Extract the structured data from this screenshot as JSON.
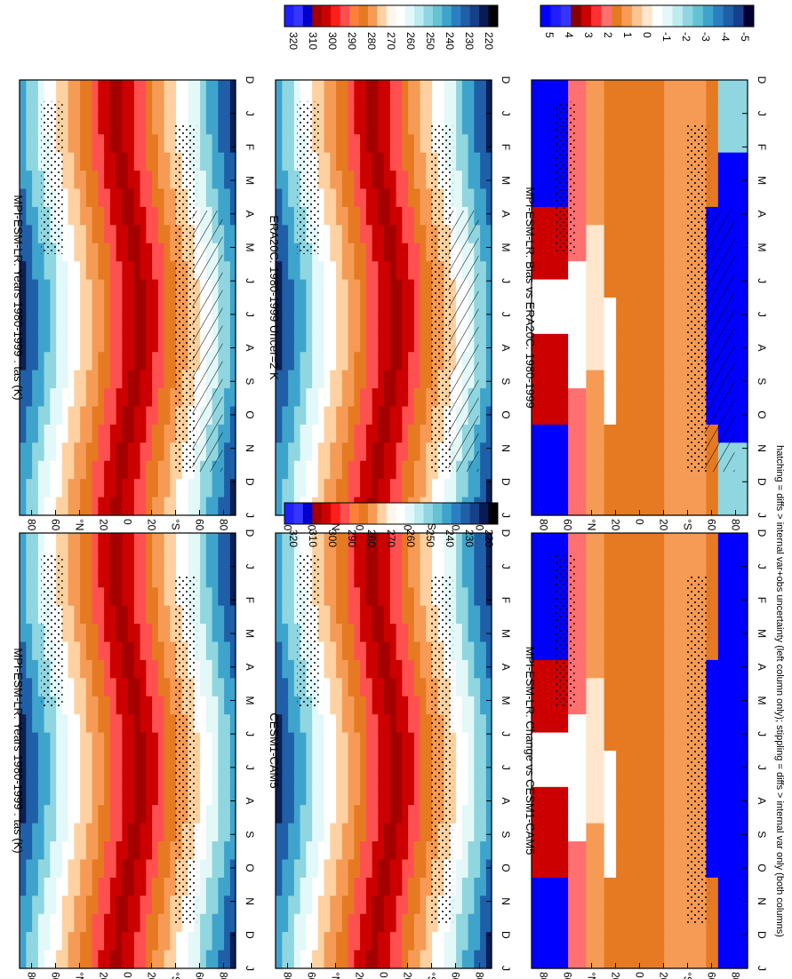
{
  "footnote": "hatching = diffs > internal var+obs uncertainty (left column only); stippling = diffs > internal var only (both columns)",
  "colorbars": {
    "tas": {
      "labels": [
        "320",
        "310",
        "300",
        "290",
        "280",
        "270",
        "260",
        "250",
        "240",
        "230",
        "220"
      ],
      "colors": [
        "#1e1eff",
        "#3535ff",
        "#0000cc",
        "#a50000",
        "#cc0000",
        "#ff1e1e",
        "#ff5050",
        "#ff7f3a",
        "#e67a22",
        "#f59b55",
        "#ffd1a0",
        "#fff5ea",
        "#ffffff",
        "#e3f8f8",
        "#bdebef",
        "#8fd6e0",
        "#64c3d3",
        "#3fa4cc",
        "#2a7fc0",
        "#1f5fa8",
        "#173f8a",
        "#0a1a55",
        "#000000"
      ]
    },
    "diff": {
      "labels": [
        "5",
        "4",
        "3",
        "2",
        "1",
        "0",
        "-1",
        "-2",
        "-3",
        "-4",
        "-5"
      ],
      "colors": [
        "#0000ff",
        "#1e1eff",
        "#3535ff",
        "#8a0000",
        "#cc0000",
        "#ff3030",
        "#ff7070",
        "#e67a22",
        "#f59b55",
        "#fcc48f",
        "#ffe6cc",
        "#ffffff",
        "#e3f8f8",
        "#bdebef",
        "#8fd6e0",
        "#64c3d3",
        "#3fa4cc",
        "#2a7fc0",
        "#1f5fa8",
        "#173f8a",
        "#000033"
      ]
    }
  },
  "chart_data": [
    {
      "type": "heatmap",
      "title": "MPI-ESM-LR: Years 1980-1999 : tas (K)",
      "x_categories": [
        "D",
        "J",
        "F",
        "M",
        "A",
        "M",
        "J",
        "J",
        "A",
        "S",
        "O",
        "N",
        "D",
        "J"
      ],
      "y_tick_labels": [
        "80",
        "60",
        "°N",
        "20",
        "0",
        "20",
        "°S",
        "60",
        "80"
      ],
      "variable": "tas",
      "units": "K",
      "colorbar": "tas",
      "hatching": "southern high latitudes, May-December",
      "stippling": true
    },
    {
      "type": "heatmap",
      "title": "MPI-ESM-LR: Years 1980-1999 : tas (K)",
      "x_categories": [
        "D",
        "J",
        "F",
        "M",
        "A",
        "M",
        "J",
        "J",
        "A",
        "S",
        "O",
        "N",
        "D",
        "J"
      ],
      "y_tick_labels": [
        "80",
        "60",
        "°N",
        "20",
        "0",
        "20",
        "°S",
        "60",
        "80"
      ],
      "variable": "tas",
      "units": "K",
      "colorbar": "tas",
      "stippling": true
    },
    {
      "type": "heatmap",
      "title": "ERA20C: 1980-1999 Uncer=2 K",
      "x_categories": [
        "D",
        "J",
        "F",
        "M",
        "A",
        "M",
        "J",
        "J",
        "A",
        "S",
        "O",
        "N",
        "D",
        "J"
      ],
      "y_tick_labels": [
        "80",
        "60",
        "°N",
        "20",
        "0",
        "20",
        "°S",
        "60",
        "80"
      ],
      "variable": "tas",
      "units": "K",
      "colorbar": "tas",
      "hatching": "southern high latitudes, May-December",
      "stippling": true
    },
    {
      "type": "heatmap",
      "title": "CESM1-CAM5",
      "x_categories": [
        "D",
        "J",
        "F",
        "M",
        "A",
        "M",
        "J",
        "J",
        "A",
        "S",
        "O",
        "N",
        "D",
        "J"
      ],
      "y_tick_labels": [
        "80",
        "60",
        "°N",
        "20",
        "0",
        "20",
        "°S",
        "60",
        "80"
      ],
      "variable": "tas",
      "units": "K",
      "colorbar": "tas",
      "stippling": true
    },
    {
      "type": "heatmap",
      "title": "MPI-ESM-LR: Bias vs ERA20C: 1980-1999",
      "x_categories": [
        "D",
        "J",
        "F",
        "M",
        "A",
        "M",
        "J",
        "J",
        "A",
        "S",
        "O",
        "N",
        "D",
        "J"
      ],
      "y_tick_labels": [
        "80",
        "60",
        "°N",
        "20",
        "0",
        "20",
        "°S",
        "60",
        "80"
      ],
      "variable": "tas difference",
      "units": "K",
      "colorbar": "diff",
      "hatching": "southern high latitudes, April-October",
      "stippling": true
    },
    {
      "type": "heatmap",
      "title": "MPI-ESM-LR: Change vs CESM1-CAM5",
      "x_categories": [
        "D",
        "J",
        "F",
        "M",
        "A",
        "M",
        "J",
        "J",
        "A",
        "S",
        "O",
        "N",
        "D",
        "J"
      ],
      "y_tick_labels": [
        "80",
        "60",
        "°N",
        "20",
        "0",
        "20",
        "°S",
        "60",
        "80"
      ],
      "variable": "tas difference",
      "units": "K",
      "colorbar": "diff",
      "stippling": true
    }
  ]
}
